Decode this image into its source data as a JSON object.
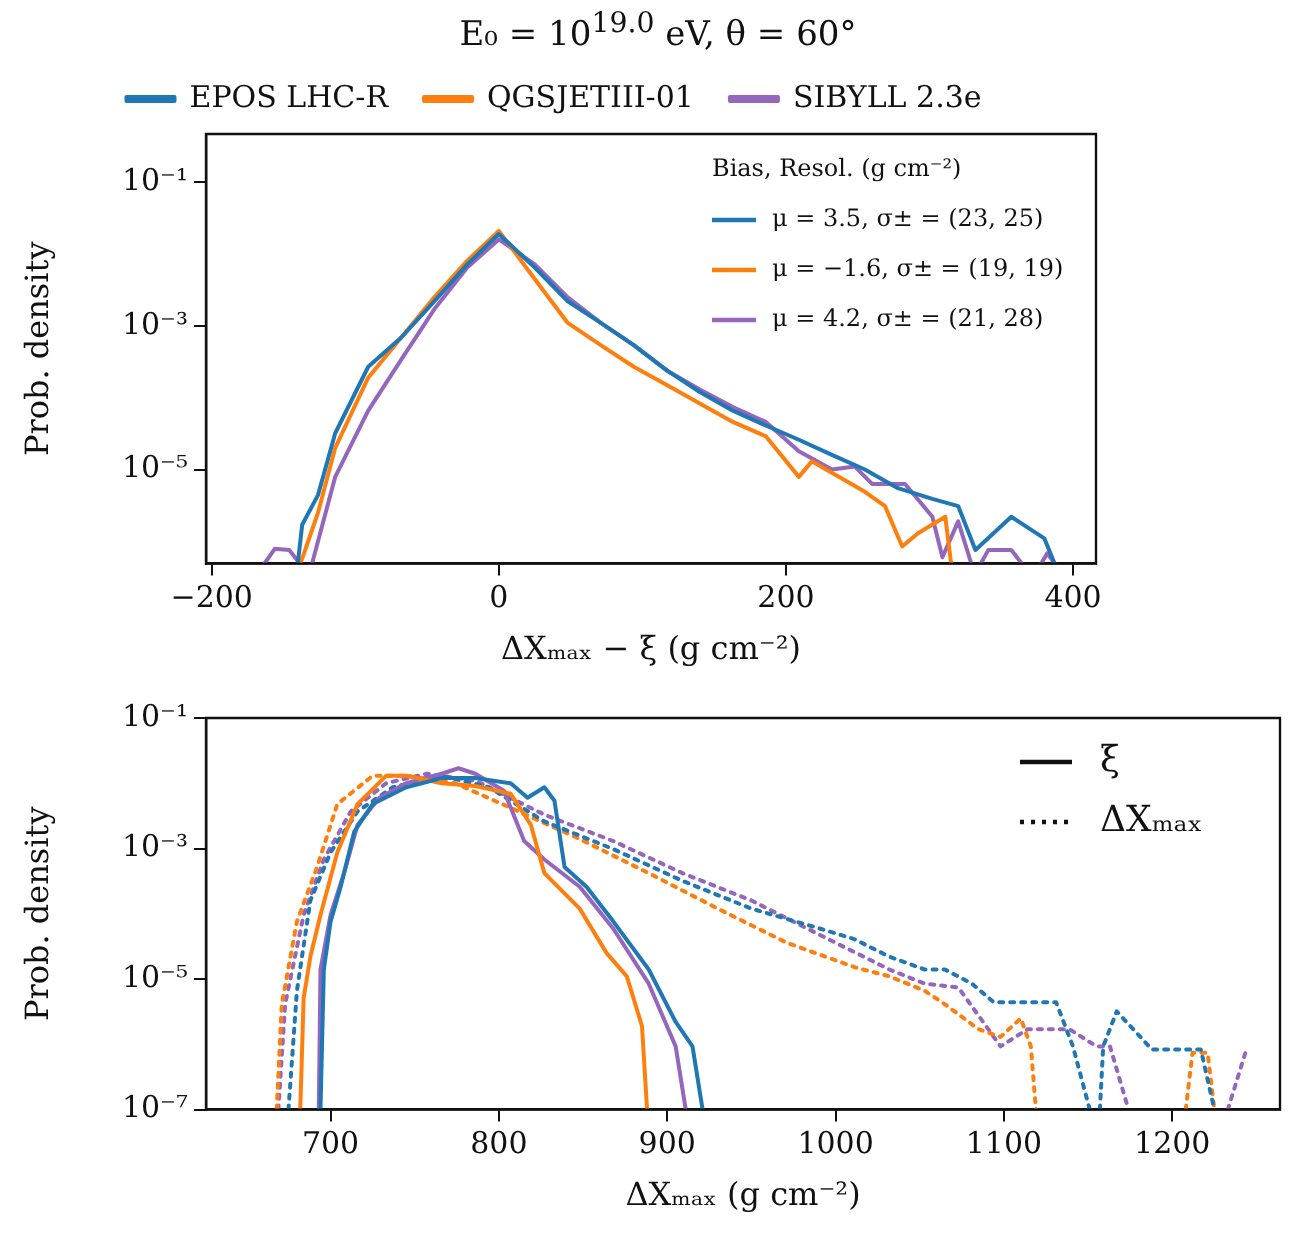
{
  "chart_data": [
    {
      "type": "line",
      "title": "E₀ = 10$^{19.0}$ eV, θ = 60°",
      "xlabel": "ΔXₘₐₓ − ξ (g cm⁻²)",
      "ylabel": "Prob. density",
      "log": "y",
      "legend": "top",
      "legend_title": "Bias, Resol. (g cm⁻²)",
      "annotations": [
        "μ = 3.5, σ± = (23, 25)",
        "μ = −1.6, σ± = (19, 19)",
        "μ = 4.2, σ± = (21, 28)"
      ],
      "xlim": [
        -204,
        416
      ],
      "xticks": [
        {
          "value": -200,
          "label": "−200"
        },
        0,
        200,
        400
      ],
      "ylim": [
        4.9e-07,
        0.47
      ],
      "yticks": [
        {
          "value": 0.1,
          "label": "10⁻¹"
        },
        {
          "value": 0.001,
          "label": "10⁻³"
        },
        {
          "value": 1e-05,
          "label": "10⁻⁵"
        }
      ],
      "series": [
        {
          "name": "EPOS LHC-R",
          "color": "#1f77b4",
          "line_style": "solid",
          "x": [
            -140,
            -137,
            -126,
            -114,
            -91,
            -68,
            -45,
            -22,
            0,
            25,
            48,
            71,
            94,
            117,
            140,
            163,
            186,
            209,
            232,
            255,
            278,
            302,
            320,
            332,
            357,
            380,
            387
          ],
          "values": [
            5e-07,
            1.7e-06,
            4.4e-06,
            3.2e-05,
            0.00027,
            0.00069,
            0.0022,
            0.0072,
            0.019,
            0.0065,
            0.0022,
            0.0011,
            0.00054,
            0.00024,
            0.00012,
            6.6e-05,
            4.1e-05,
            2.6e-05,
            1.6e-05,
            1e-05,
            5.5e-06,
            3.9e-06,
            3.1e-06,
            7.6e-07,
            2.2e-06,
            1.1e-06,
            5e-07
          ]
        },
        {
          "name": "QGSJETIII-01",
          "color": "#ff7f0e",
          "line_style": "solid",
          "x": [
            -138,
            -126,
            -114,
            -91,
            -68,
            -45,
            -22,
            0,
            25,
            48,
            71,
            94,
            117,
            140,
            163,
            186,
            209,
            218,
            255,
            269,
            281,
            292,
            311,
            315
          ],
          "values": [
            5e-07,
            2.5e-06,
            2e-05,
            0.00019,
            0.00069,
            0.0025,
            0.0081,
            0.021,
            0.0045,
            0.0011,
            0.00054,
            0.00027,
            0.00015,
            8.3e-05,
            4.6e-05,
            2.9e-05,
            7.9e-06,
            1.3e-05,
            4.9e-06,
            3.1e-06,
            8.5e-07,
            1.3e-06,
            2.2e-06,
            5e-07
          ]
        },
        {
          "name": "SIBYLL 2.3e",
          "color": "#9467bd",
          "line_style": "solid",
          "x": [
            -163,
            -156,
            -146,
            -139,
            -135,
            -130,
            -114,
            -91,
            -68,
            -45,
            -22,
            0,
            25,
            48,
            71,
            94,
            117,
            140,
            163,
            186,
            209,
            232,
            248,
            260,
            283,
            302,
            309,
            320,
            329,
            332,
            336,
            341,
            357,
            364,
            371,
            378,
            382,
            387
          ],
          "values": [
            5e-07,
            7.9e-07,
            7.6e-07,
            5e-07,
            null,
            5e-07,
            7.9e-06,
            6.6e-05,
            0.00034,
            0.0017,
            0.0065,
            0.016,
            0.0072,
            0.0025,
            0.0011,
            0.00054,
            0.00024,
            0.00013,
            7.4e-05,
            4.6e-05,
            1.8e-05,
            1e-05,
            1.1e-05,
            6.3e-06,
            6.3e-06,
            2.2e-06,
            6e-07,
            1.9e-06,
            5e-07,
            null,
            5e-07,
            7.6e-07,
            7.6e-07,
            5e-07,
            null,
            5e-07,
            6.8e-07,
            5e-07
          ]
        }
      ]
    },
    {
      "type": "line",
      "xlabel": "ΔXₘₐₓ (g cm⁻²)",
      "ylabel": "Prob. density",
      "log": "y",
      "annotations": [
        "ξ",
        "ΔXₘₐₓ"
      ],
      "xlim": [
        626,
        1264
      ],
      "xticks": [
        700,
        800,
        900,
        1000,
        1100,
        1200
      ],
      "ylim": [
        1e-07,
        0.1
      ],
      "yticks": [
        {
          "value": 0.1,
          "label": "10⁻¹"
        },
        {
          "value": 0.001,
          "label": "10⁻³"
        },
        {
          "value": 1e-05,
          "label": "10⁻⁵"
        },
        {
          "value": 1e-07,
          "label": "10⁻⁷"
        }
      ],
      "series": [
        {
          "color": "#1f77b4",
          "line_style": "solid",
          "x": [
            694,
            696,
            700,
            706,
            714,
            725,
            745,
            766,
            786,
            807,
            817,
            827,
            833,
            839,
            852,
            868,
            889,
            905,
            915,
            921
          ],
          "values": [
            1e-07,
            1.4e-05,
            7.6e-05,
            0.00026,
            0.0018,
            0.0048,
            0.0087,
            0.012,
            0.012,
            0.01,
            0.006,
            0.0087,
            0.0054,
            0.00052,
            0.00026,
            7.6e-05,
            1.4e-05,
            2.2e-06,
            9.3e-07,
            1e-07
          ]
        },
        {
          "color": "#ff7f0e",
          "line_style": "solid",
          "x": [
            682,
            684,
            688,
            694,
            704,
            716,
            733,
            745,
            766,
            786,
            807,
            819,
            827,
            848,
            864,
            876,
            885,
            888
          ],
          "values": [
            1e-07,
            5.1e-06,
            2.2e-05,
            9.6e-05,
            0.00087,
            0.0048,
            0.013,
            0.013,
            0.01,
            0.0091,
            0.0069,
            0.0023,
            0.00042,
            0.00012,
            2.5e-05,
            1.1e-05,
            1.9e-06,
            1e-07
          ]
        },
        {
          "color": "#9467bd",
          "line_style": "solid",
          "x": [
            693,
            694,
            700,
            708,
            716,
            729,
            745,
            766,
            776,
            786,
            803,
            815,
            827,
            848,
            868,
            889,
            905,
            911
          ],
          "values": [
            1e-07,
            1.4e-05,
            9.6e-05,
            0.00042,
            0.0023,
            0.006,
            0.01,
            0.014,
            0.017,
            0.014,
            0.0077,
            0.0013,
            0.00068,
            0.00026,
            5.9e-05,
            8.5e-06,
            9.3e-07,
            1e-07
          ]
        },
        {
          "color": "#1f77b4",
          "line_style": "dotted",
          "x": [
            675,
            680,
            688,
            700,
            716,
            737,
            766,
            794,
            827,
            868,
            909,
            950,
            991,
            1011,
            1032,
            1053,
            1065,
            1081,
            1094,
            1131,
            1141,
            1151,
            1154,
            1157,
            1159,
            1167,
            1188,
            1217,
            1225
          ],
          "values": [
            1e-07,
            6.6e-06,
            0.00016,
            0.00087,
            0.0037,
            0.0087,
            0.013,
            0.0087,
            0.0026,
            0.00098,
            0.00032,
            0.00012,
            5.9e-05,
            4.1e-05,
            2.2e-05,
            1.4e-05,
            1.4e-05,
            8.5e-06,
            4.4e-06,
            4.4e-06,
            9.3e-07,
            1e-07,
            null,
            1e-07,
            9.3e-07,
            3.2e-06,
            8.3e-07,
            8.3e-07,
            1e-07
          ]
        },
        {
          "color": "#ff7f0e",
          "line_style": "dotted",
          "x": [
            668,
            671,
            680,
            692,
            704,
            725,
            745,
            774,
            807,
            848,
            889,
            930,
            971,
            1012,
            1032,
            1053,
            1065,
            1085,
            1098,
            1110,
            1116,
            1119,
            1160,
            1208,
            1212,
            1221,
            1225
          ],
          "values": [
            1e-07,
            4.1e-06,
            7.6e-05,
            0.00052,
            0.0048,
            0.013,
            0.013,
            0.01,
            0.0042,
            0.0014,
            0.00042,
            0.00012,
            3.6e-05,
            1.5e-05,
            1.1e-05,
            6.6e-06,
            4.1e-06,
            1.7e-06,
            1.3e-06,
            2.5e-06,
            9.3e-07,
            1e-07,
            null,
            1e-07,
            7.4e-07,
            7.4e-07,
            1e-07
          ]
        },
        {
          "color": "#9467bd",
          "line_style": "dotted",
          "x": [
            669,
            673,
            684,
            696,
            712,
            733,
            757,
            786,
            827,
            868,
            909,
            950,
            991,
            1032,
            1053,
            1073,
            1098,
            1114,
            1139,
            1155,
            1163,
            1174,
            1200,
            1233,
            1244
          ],
          "values": [
            1e-07,
            4.1e-06,
            9.6e-05,
            0.00068,
            0.0037,
            0.01,
            0.014,
            0.011,
            0.0033,
            0.0013,
            0.00042,
            0.00016,
            4.7e-05,
            1.4e-05,
            8.5e-06,
            7.4e-06,
            9.3e-07,
            1.7e-06,
            1.7e-06,
            9.3e-07,
            9.3e-07,
            1e-07,
            null,
            1e-07,
            8.3e-07
          ]
        }
      ]
    }
  ]
}
